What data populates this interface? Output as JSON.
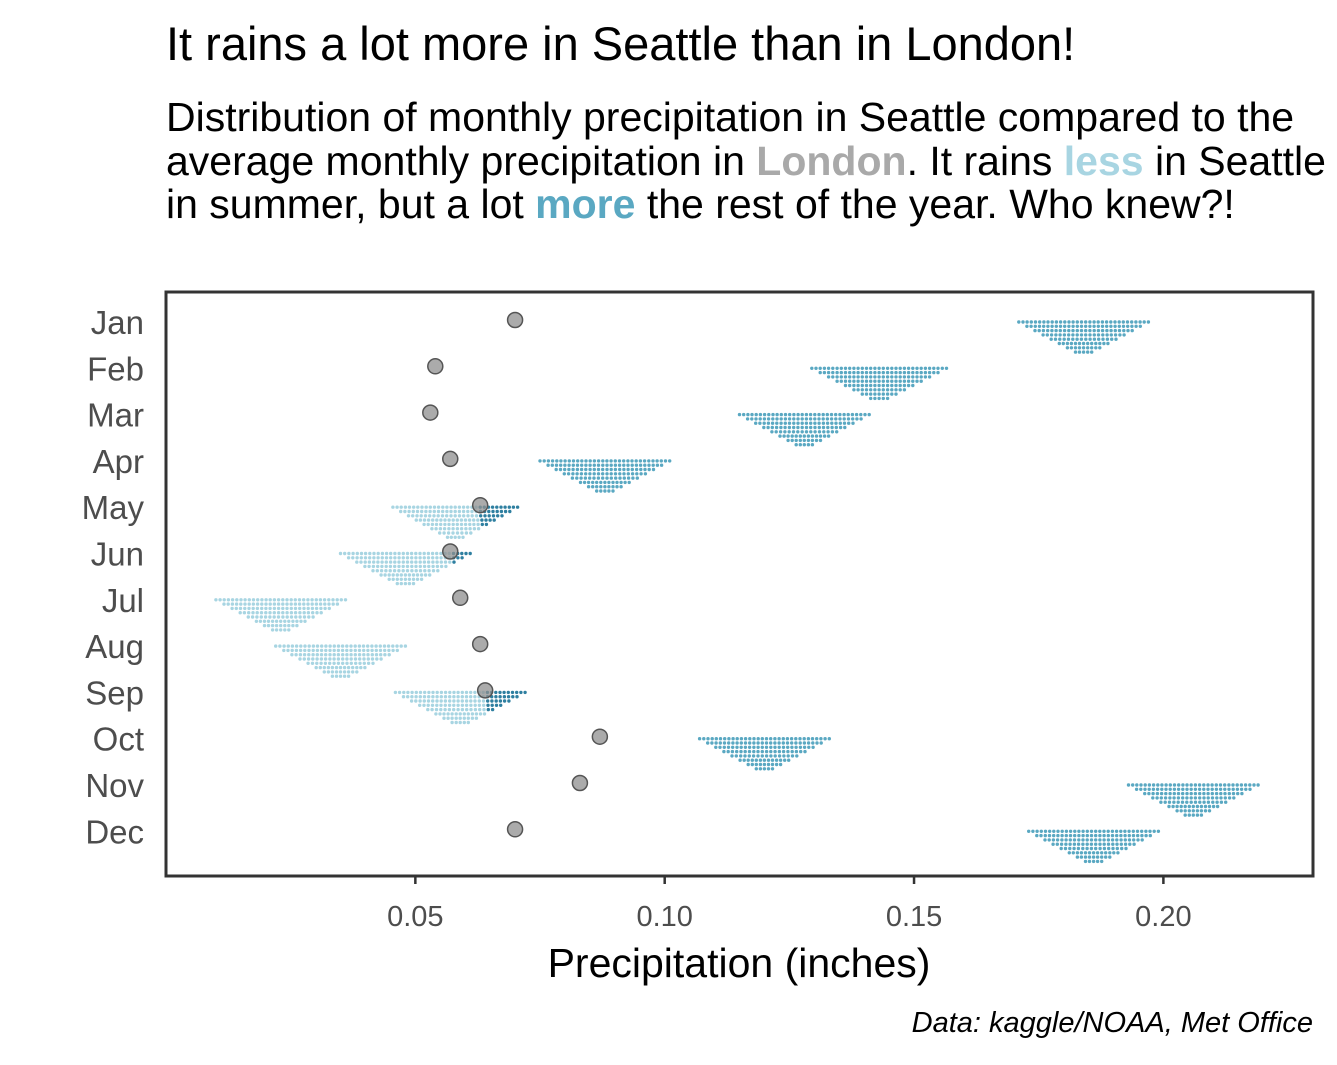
{
  "title": "It rains a lot more in Seattle than in London!",
  "subtitle": {
    "part1": "Distribution of monthly precipitation in Seattle compared to the average monthly precipitation in ",
    "london": "London",
    "part2": ". It rains ",
    "less": "less",
    "part3": " in Seattle in summer, but a lot ",
    "more": "more",
    "part4": " the rest of the year. Who knew?!"
  },
  "caption": "Data: kaggle/NOAA, Met Office",
  "colors": {
    "london": "#a9a9a9",
    "less": "#a8d5e2",
    "more": "#5aa8c2",
    "more_dark": "#2e7fa0"
  },
  "chart_data": {
    "type": "scatter",
    "title": "It rains a lot more in Seattle than in London!",
    "xlabel": "Precipitation (inches)",
    "ylabel": "",
    "xlim": [
      0.0,
      0.23
    ],
    "x_ticks": [
      0.05,
      0.1,
      0.15,
      0.2
    ],
    "x_tick_labels": [
      "0.05",
      "0.10",
      "0.15",
      "0.20"
    ],
    "grid": false,
    "categories": [
      "Jan",
      "Feb",
      "Mar",
      "Apr",
      "May",
      "Jun",
      "Jul",
      "Aug",
      "Sep",
      "Oct",
      "Nov",
      "Dec"
    ],
    "series": [
      {
        "name": "London",
        "values": [
          0.07,
          0.054,
          0.053,
          0.057,
          0.063,
          0.057,
          0.059,
          0.063,
          0.064,
          0.087,
          0.083,
          0.07
        ]
      },
      {
        "name": "Seattle",
        "distribution": [
          {
            "month": "Jan",
            "low": 0.17,
            "high": 0.196,
            "mean": 0.184
          },
          {
            "month": "Feb",
            "low": 0.13,
            "high": 0.157,
            "mean": 0.143
          },
          {
            "month": "Mar",
            "low": 0.115,
            "high": 0.141,
            "mean": 0.128
          },
          {
            "month": "Apr",
            "low": 0.075,
            "high": 0.101,
            "mean": 0.088
          },
          {
            "month": "May",
            "low": 0.046,
            "high": 0.071,
            "mean": 0.058
          },
          {
            "month": "Jun",
            "low": 0.035,
            "high": 0.061,
            "mean": 0.048
          },
          {
            "month": "Jul",
            "low": 0.01,
            "high": 0.036,
            "mean": 0.023
          },
          {
            "month": "Aug",
            "low": 0.022,
            "high": 0.048,
            "mean": 0.035
          },
          {
            "month": "Sep",
            "low": 0.046,
            "high": 0.072,
            "mean": 0.059
          },
          {
            "month": "Oct",
            "low": 0.107,
            "high": 0.133,
            "mean": 0.12
          },
          {
            "month": "Nov",
            "low": 0.193,
            "high": 0.219,
            "mean": 0.206
          },
          {
            "month": "Dec",
            "low": 0.173,
            "high": 0.199,
            "mean": 0.186
          }
        ]
      }
    ]
  }
}
